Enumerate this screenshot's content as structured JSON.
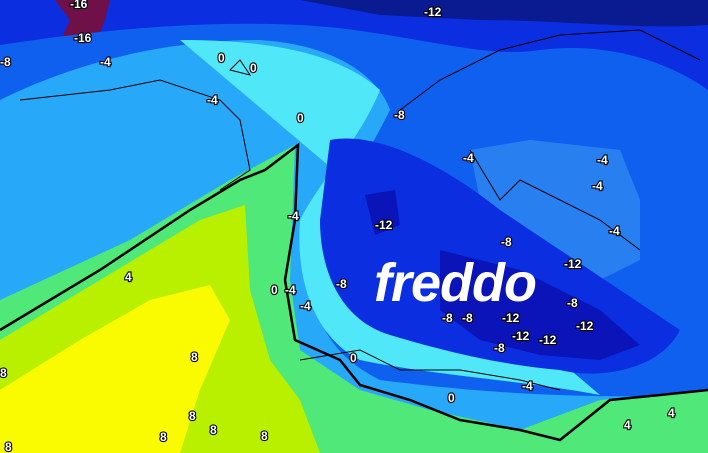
{
  "overlay_text": "freddo",
  "colors": {
    "very_cold": "#0a14b8",
    "cold_blue": "#0a2ee0",
    "mid_blue": "#1060f0",
    "light_blue": "#28a8f8",
    "cyan": "#50e8f8",
    "green": "#50e878",
    "yellow_green": "#b8f000",
    "yellow": "#fafa00",
    "purple": "#701048"
  },
  "contour_labels": [
    "-16",
    "-16",
    "-12",
    "-8",
    "-4",
    "0",
    "0",
    "-4",
    "0",
    "-8",
    "-4",
    "-4",
    "-4",
    "-12",
    "-4",
    "-4",
    "-8",
    "-12",
    "4",
    "-8",
    "0",
    "-4",
    "-4",
    "-12",
    "-8",
    "-8",
    "-8",
    "-12",
    "-12",
    "-12",
    "-8",
    "0",
    "8",
    "8",
    "-4",
    "0",
    "8",
    "8",
    "8",
    "8",
    "4",
    "4",
    "8"
  ]
}
